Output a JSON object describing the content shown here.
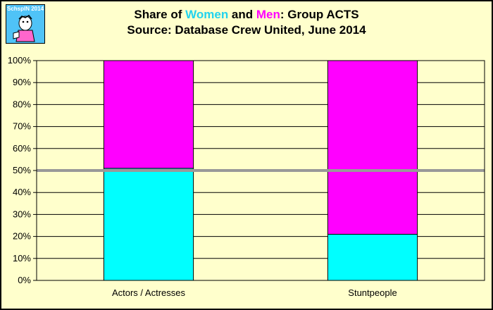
{
  "title": {
    "line1_pre": "Share of ",
    "line1_women": "Women",
    "line1_and": " and ",
    "line1_men": "Men",
    "line1_post": ": Group ACTS",
    "line2": "Source: Database Crew United, June 2014"
  },
  "logo": {
    "text": "SchspIN 2014",
    "icon": "cartoon-figure-logo"
  },
  "colors": {
    "women": "#00ffff",
    "men": "#ff00ff",
    "plot_bg": "#ffffcc",
    "reference_line": "#999999"
  },
  "chart_data": {
    "type": "bar",
    "stacked": true,
    "categories": [
      "Actors / Actresses",
      "Stuntpeople"
    ],
    "series": [
      {
        "name": "Women",
        "values": [
          51,
          21
        ]
      },
      {
        "name": "Men",
        "values": [
          49,
          79
        ]
      }
    ],
    "ylim": [
      0,
      100
    ],
    "yticks": [
      "0%",
      "10%",
      "20%",
      "30%",
      "40%",
      "50%",
      "60%",
      "70%",
      "80%",
      "90%",
      "100%"
    ],
    "reference_line": 50,
    "grid": true,
    "legend": "none"
  }
}
